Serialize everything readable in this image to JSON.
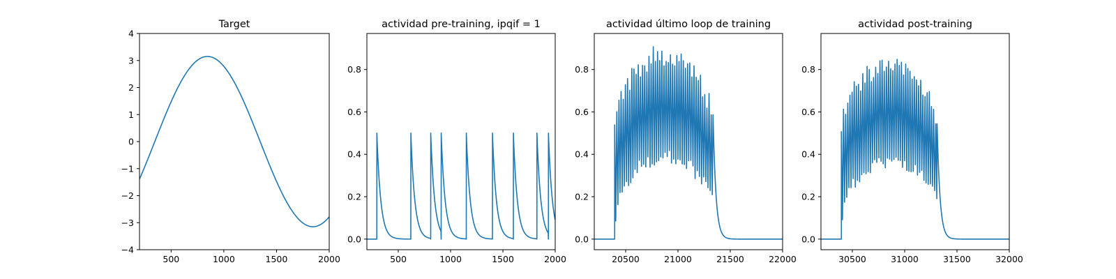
{
  "chart_data": [
    {
      "type": "line",
      "title": "Target",
      "xlabel": "",
      "ylabel": "",
      "xlim": [
        200,
        2000
      ],
      "ylim": [
        -4,
        4
      ],
      "x_ticks": [
        "500",
        "1000",
        "1500",
        "2000"
      ],
      "y_ticks": [
        "−4",
        "−3",
        "−2",
        "−1",
        "0",
        "1",
        "2",
        "3",
        "4"
      ],
      "grid": false,
      "line_color": "#1f77b4",
      "signal": {
        "kind": "sine",
        "amplitude": 3.15,
        "peak_x": 845,
        "trough_x": 1845
      }
    },
    {
      "type": "line",
      "title": "actividad pre-training, ipqif = 1",
      "xlabel": "",
      "ylabel": "",
      "xlim": [
        200,
        2000
      ],
      "ylim": [
        -0.05,
        0.97
      ],
      "x_ticks": [
        "500",
        "1000",
        "1500",
        "2000"
      ],
      "y_ticks": [
        "0.0",
        "0.2",
        "0.4",
        "0.6",
        "0.8"
      ],
      "grid": false,
      "line_color": "#1f77b4",
      "signal": {
        "kind": "spikes",
        "spike_times": [
          295,
          620,
          810,
          910,
          1150,
          1400,
          1600,
          1825,
          1935
        ],
        "peak": 0.5,
        "decay": 38
      }
    },
    {
      "type": "line",
      "title": "actividad último loop de training",
      "xlabel": "",
      "ylabel": "",
      "xlim": [
        20200,
        22000
      ],
      "ylim": [
        -0.05,
        0.97
      ],
      "x_ticks": [
        "20500",
        "21000",
        "21500",
        "22000"
      ],
      "y_ticks": [
        "0.0",
        "0.2",
        "0.4",
        "0.6",
        "0.8"
      ],
      "grid": false,
      "line_color": "#1f77b4",
      "signal": {
        "kind": "burst",
        "start": 20395,
        "end": 21335,
        "period": 20.5,
        "peak_range": [
          0.5,
          0.92
        ],
        "trough_range": [
          0.08,
          0.42
        ],
        "decay": 28
      }
    },
    {
      "type": "line",
      "title": "actividad post-training",
      "xlabel": "",
      "ylabel": "",
      "xlim": [
        30200,
        32000
      ],
      "ylim": [
        -0.05,
        0.97
      ],
      "x_ticks": [
        "30500",
        "31000",
        "31500",
        "32000"
      ],
      "y_ticks": [
        "0.0",
        "0.2",
        "0.4",
        "0.6",
        "0.8"
      ],
      "grid": false,
      "line_color": "#1f77b4",
      "signal": {
        "kind": "burst",
        "start": 30395,
        "end": 31310,
        "period": 20.5,
        "peak_range": [
          0.5,
          0.86
        ],
        "trough_range": [
          0.08,
          0.4
        ],
        "decay": 28
      }
    }
  ]
}
